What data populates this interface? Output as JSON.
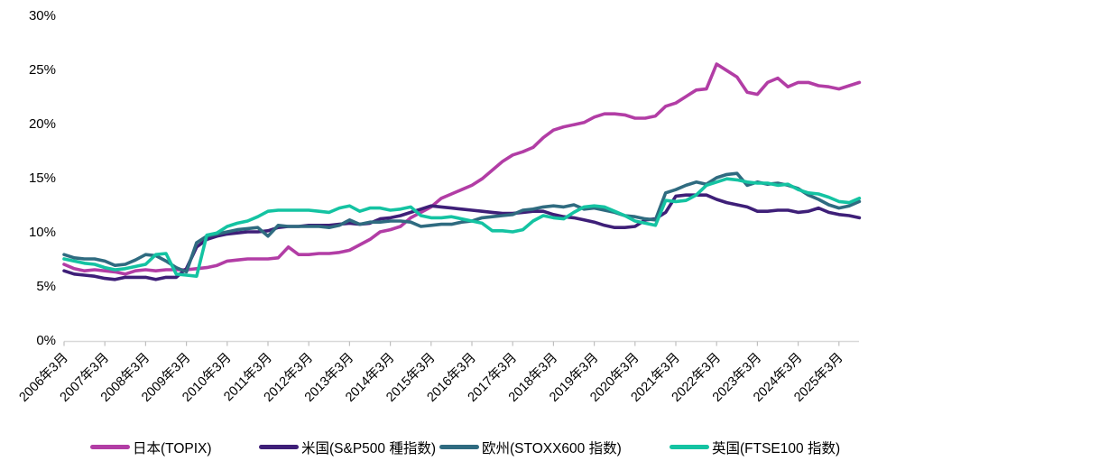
{
  "chart_data": {
    "type": "line",
    "title": "",
    "unit": "%",
    "ylim": [
      0,
      30
    ],
    "y_tick_step": 5,
    "y_tick_labels": [
      "0%",
      "5%",
      "10%",
      "15%",
      "20%",
      "25%",
      "30%"
    ],
    "x_tick_labels": [
      "2006年3月",
      "2007年3月",
      "2008年3月",
      "2009年3月",
      "2010年3月",
      "2011年3月",
      "2012年3月",
      "2013年3月",
      "2014年3月",
      "2015年3月",
      "2016年3月",
      "2017年3月",
      "2018年3月",
      "2019年3月",
      "2020年3月",
      "2021年3月",
      "2022年3月",
      "2023年3月",
      "2024年3月",
      "2025年3月"
    ],
    "x_sampling": "quarterly, 2006-03 through 2025-09, values read from plot",
    "grid": false,
    "legend_position": "bottom",
    "axis_color": "#d9d9d9",
    "tick_color": "#bfbfbf",
    "text_color": "#000000",
    "series": [
      {
        "key": "japan",
        "name": "日本(TOPIX)",
        "color": "#b23da5",
        "values": [
          7.0,
          6.6,
          6.4,
          6.5,
          6.4,
          6.3,
          6.1,
          6.4,
          6.5,
          6.4,
          6.5,
          6.5,
          6.5,
          6.6,
          6.7,
          6.9,
          7.3,
          7.4,
          7.5,
          7.5,
          7.5,
          7.6,
          8.6,
          7.9,
          7.9,
          8.0,
          8.0,
          8.1,
          8.3,
          8.8,
          9.3,
          10.0,
          10.2,
          10.5,
          11.3,
          11.8,
          12.3,
          13.1,
          13.5,
          13.9,
          14.3,
          14.9,
          15.7,
          16.5,
          17.1,
          17.4,
          17.8,
          18.7,
          19.4,
          19.7,
          19.9,
          20.1,
          20.6,
          20.9,
          20.9,
          20.8,
          20.5,
          20.5,
          20.7,
          21.6,
          21.9,
          22.5,
          23.1,
          23.2,
          25.5,
          24.9,
          24.3,
          22.9,
          22.7,
          23.8,
          24.2,
          23.4,
          23.8,
          23.8,
          23.5,
          23.4,
          23.2,
          23.5,
          23.8
        ]
      },
      {
        "key": "us",
        "name": "米国(S&P500 種指数)",
        "color": "#3e1f78",
        "values": [
          6.4,
          6.1,
          6.0,
          5.9,
          5.7,
          5.6,
          5.8,
          5.8,
          5.8,
          5.6,
          5.8,
          5.8,
          6.6,
          8.6,
          9.3,
          9.6,
          9.8,
          9.9,
          10.0,
          10.0,
          10.1,
          10.4,
          10.5,
          10.5,
          10.6,
          10.6,
          10.6,
          10.7,
          10.8,
          10.7,
          10.8,
          11.2,
          11.3,
          11.5,
          11.8,
          12.1,
          12.4,
          12.3,
          12.2,
          12.1,
          12.0,
          11.9,
          11.8,
          11.7,
          11.7,
          11.8,
          11.9,
          11.9,
          11.6,
          11.4,
          11.3,
          11.1,
          10.9,
          10.6,
          10.4,
          10.4,
          10.5,
          11.1,
          11.2,
          11.8,
          13.3,
          13.4,
          13.4,
          13.4,
          13.0,
          12.7,
          12.5,
          12.3,
          11.9,
          11.9,
          12.0,
          12.0,
          11.8,
          11.9,
          12.2,
          11.8,
          11.6,
          11.5,
          11.3
        ]
      },
      {
        "key": "europe",
        "name": "欧州(STOXX600 指数)",
        "color": "#2f6b80",
        "values": [
          7.9,
          7.6,
          7.5,
          7.5,
          7.3,
          6.9,
          7.0,
          7.4,
          7.9,
          7.8,
          7.3,
          6.7,
          6.3,
          9.0,
          9.6,
          9.8,
          10.0,
          10.2,
          10.3,
          10.4,
          9.6,
          10.6,
          10.5,
          10.5,
          10.5,
          10.5,
          10.4,
          10.6,
          11.1,
          10.7,
          10.9,
          10.9,
          11.0,
          11.0,
          10.9,
          10.5,
          10.6,
          10.7,
          10.7,
          10.9,
          11.0,
          11.3,
          11.4,
          11.5,
          11.6,
          12.0,
          12.1,
          12.3,
          12.4,
          12.3,
          12.5,
          12.1,
          12.2,
          12.0,
          11.8,
          11.5,
          11.4,
          11.2,
          11.1,
          13.6,
          13.9,
          14.3,
          14.6,
          14.4,
          15.0,
          15.3,
          15.4,
          14.3,
          14.6,
          14.4,
          14.5,
          14.3,
          14.0,
          13.4,
          13.0,
          12.5,
          12.2,
          12.4,
          12.8
        ]
      },
      {
        "key": "uk",
        "name": "英国(FTSE100 指数)",
        "color": "#14c3a2",
        "values": [
          7.5,
          7.3,
          7.1,
          7.0,
          6.7,
          6.5,
          6.6,
          6.8,
          7.0,
          7.9,
          8.0,
          6.1,
          6.0,
          5.9,
          9.7,
          9.9,
          10.5,
          10.8,
          11.0,
          11.4,
          11.9,
          12.0,
          12.0,
          12.0,
          12.0,
          11.9,
          11.8,
          12.2,
          12.4,
          11.9,
          12.2,
          12.2,
          12.0,
          12.1,
          12.3,
          11.5,
          11.3,
          11.3,
          11.4,
          11.2,
          11.0,
          10.8,
          10.1,
          10.1,
          10.0,
          10.2,
          11.0,
          11.5,
          11.3,
          11.2,
          11.8,
          12.3,
          12.4,
          12.3,
          11.9,
          11.5,
          11.0,
          10.8,
          10.6,
          12.9,
          12.8,
          12.9,
          13.4,
          14.3,
          14.6,
          14.9,
          14.8,
          14.6,
          14.5,
          14.5,
          14.3,
          14.4,
          13.9,
          13.6,
          13.5,
          13.2,
          12.8,
          12.7,
          13.1
        ]
      }
    ]
  }
}
